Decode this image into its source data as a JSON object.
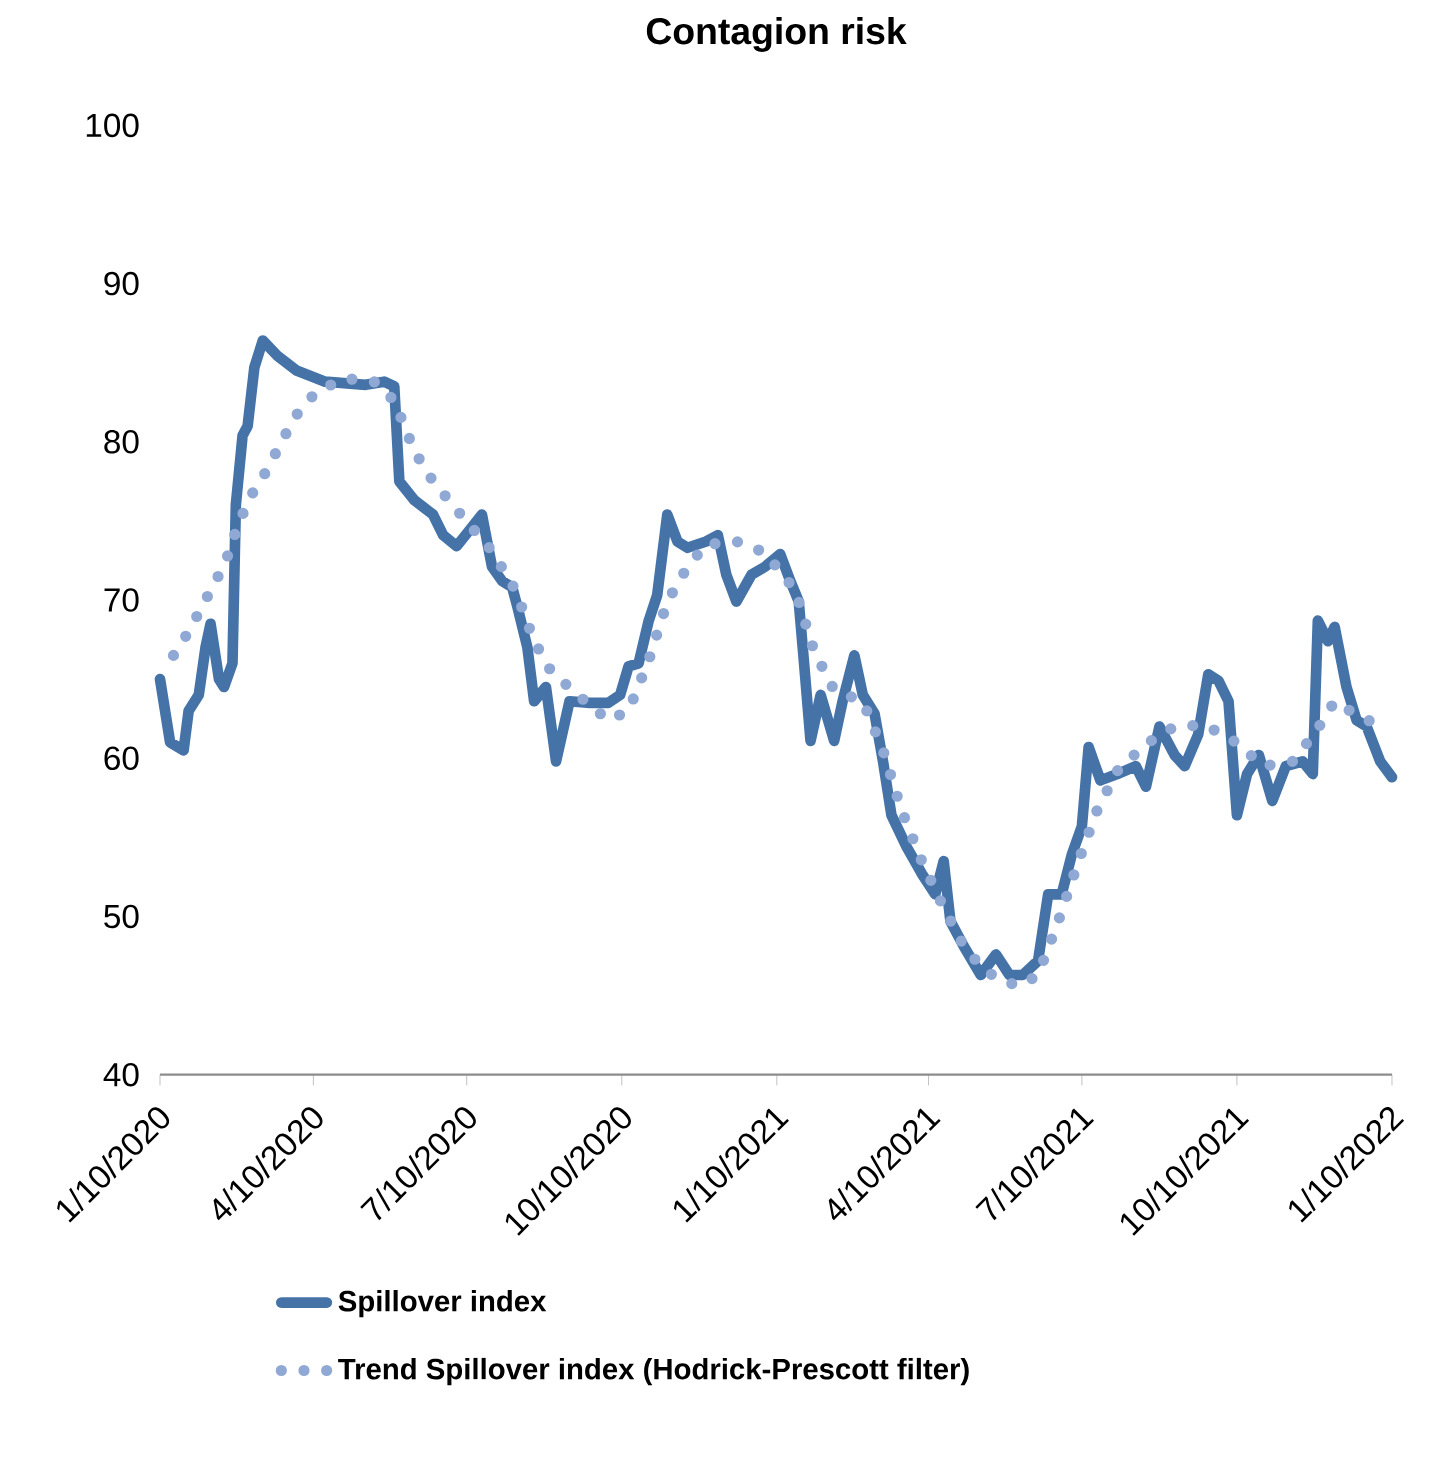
{
  "chart_data": {
    "type": "line",
    "title": "Contagion risk",
    "legend": "bottom",
    "xlim": [
      "2020-01-10",
      "2022-01-10"
    ],
    "xticks": [
      {
        "value": "2020-01-10",
        "label": "1/10/2020"
      },
      {
        "value": "2020-04-10",
        "label": "4/10/2020"
      },
      {
        "value": "2020-07-10",
        "label": "7/10/2020"
      },
      {
        "value": "2020-10-10",
        "label": "10/10/2020"
      },
      {
        "value": "2021-01-10",
        "label": "1/10/2021"
      },
      {
        "value": "2021-04-10",
        "label": "4/10/2021"
      },
      {
        "value": "2021-07-10",
        "label": "7/10/2021"
      },
      {
        "value": "2021-10-10",
        "label": "10/10/2021"
      },
      {
        "value": "2022-01-10",
        "label": "1/10/2022"
      }
    ],
    "ylim": [
      40,
      100
    ],
    "yticks": [
      40,
      50,
      60,
      70,
      80,
      90,
      100
    ],
    "series": [
      {
        "name": "Spillover index",
        "color": "#4573a8",
        "line_style": "solid",
        "x": [
          "2020-01-10",
          "2020-01-16",
          "2020-01-24",
          "2020-01-27",
          "2020-02-02",
          "2020-02-06",
          "2020-02-09",
          "2020-02-14",
          "2020-02-17",
          "2020-02-22",
          "2020-02-24",
          "2020-02-28",
          "2020-03-02",
          "2020-03-06",
          "2020-03-11",
          "2020-03-20",
          "2020-03-31",
          "2020-04-17",
          "2020-05-11",
          "2020-05-22",
          "2020-05-28",
          "2020-05-31",
          "2020-06-09",
          "2020-06-20",
          "2020-06-26",
          "2020-07-04",
          "2020-07-13",
          "2020-07-19",
          "2020-07-25",
          "2020-07-31",
          "2020-08-06",
          "2020-08-09",
          "2020-08-15",
          "2020-08-19",
          "2020-08-26",
          "2020-09-01",
          "2020-09-09",
          "2020-09-21",
          "2020-10-02",
          "2020-10-09",
          "2020-10-14",
          "2020-10-20",
          "2020-10-26",
          "2020-10-31",
          "2020-11-06",
          "2020-11-12",
          "2020-11-18",
          "2020-11-29",
          "2020-12-06",
          "2020-12-11",
          "2020-12-17",
          "2020-12-26",
          "2021-01-03",
          "2021-01-12",
          "2021-01-18",
          "2021-01-23",
          "2021-01-26",
          "2021-01-30",
          "2021-02-05",
          "2021-02-13",
          "2021-02-18",
          "2021-02-25",
          "2021-03-02",
          "2021-03-09",
          "2021-03-14",
          "2021-03-19",
          "2021-03-28",
          "2021-04-06",
          "2021-04-14",
          "2021-04-19",
          "2021-04-23",
          "2021-05-01",
          "2021-05-11",
          "2021-05-20",
          "2021-05-28",
          "2021-06-05",
          "2021-06-14",
          "2021-06-20",
          "2021-06-28",
          "2021-07-04",
          "2021-07-10",
          "2021-07-14",
          "2021-07-21",
          "2021-07-31",
          "2021-08-11",
          "2021-08-17",
          "2021-08-25",
          "2021-09-03",
          "2021-09-09",
          "2021-09-17",
          "2021-09-23",
          "2021-09-29",
          "2021-10-05",
          "2021-10-10",
          "2021-10-16",
          "2021-10-23",
          "2021-10-31",
          "2021-11-08",
          "2021-11-18",
          "2021-11-24",
          "2021-11-27",
          "2021-12-03",
          "2021-12-07",
          "2021-12-14",
          "2021-12-20",
          "2021-12-26",
          "2022-01-03",
          "2022-01-10"
        ],
        "values": [
          65,
          61,
          60.5,
          63,
          64,
          67,
          68.5,
          65,
          64.5,
          66,
          76,
          80.4,
          81,
          84.7,
          86.4,
          85.4,
          84.5,
          83.8,
          83.6,
          83.8,
          83.5,
          77.5,
          76.3,
          75.4,
          74.1,
          73.4,
          74.6,
          75.4,
          72.1,
          71.2,
          70.8,
          69.6,
          67,
          63.6,
          64.5,
          59.8,
          63.6,
          63.5,
          63.5,
          64,
          65.8,
          66,
          68.7,
          70.3,
          75.4,
          73.7,
          73.3,
          73.7,
          74.1,
          71.6,
          69.9,
          71.6,
          72.1,
          72.9,
          71.2,
          69.9,
          66.2,
          61.1,
          64,
          61.1,
          63.6,
          66.5,
          64,
          62.8,
          59.8,
          56.4,
          54.4,
          52.7,
          51.4,
          53.5,
          49.7,
          48.1,
          46.3,
          47.6,
          46.3,
          46.3,
          47.2,
          51.4,
          51.4,
          53.9,
          55.7,
          60.7,
          58.6,
          59,
          59.5,
          58.2,
          62,
          60.2,
          59.5,
          61.5,
          65.3,
          64.9,
          63.6,
          56.4,
          59,
          60.2,
          57.3,
          59.5,
          59.8,
          59,
          68.7,
          67.4,
          68.3,
          64.5,
          62.4,
          62,
          59.8,
          58.8
        ]
      },
      {
        "name": "Trend Spillover index (Hodrick-Prescott filter)",
        "color": "#8fa8d4",
        "line_style": "dotted",
        "x": [
          "2020-01-18",
          "2020-01-27",
          "2020-02-06",
          "2020-02-14",
          "2020-02-20",
          "2020-02-25",
          "2020-03-04",
          "2020-03-14",
          "2020-03-22",
          "2020-03-31",
          "2020-04-12",
          "2020-04-29",
          "2020-05-16",
          "2020-05-28",
          "2020-06-09",
          "2020-06-20",
          "2020-07-08",
          "2020-07-25",
          "2020-08-08",
          "2020-08-19",
          "2020-08-29",
          "2020-09-15",
          "2020-10-02",
          "2020-10-14",
          "2020-10-26",
          "2020-11-06",
          "2020-11-18",
          "2020-11-29",
          "2020-12-17",
          "2021-01-03",
          "2021-01-21",
          "2021-02-01",
          "2021-02-13",
          "2021-03-02",
          "2021-03-14",
          "2021-03-25",
          "2021-04-06",
          "2021-04-17",
          "2021-04-29",
          "2021-05-11",
          "2021-05-22",
          "2021-06-03",
          "2021-06-14",
          "2021-06-26",
          "2021-07-08",
          "2021-07-19",
          "2021-07-31",
          "2021-08-17",
          "2021-09-03",
          "2021-09-21",
          "2021-10-08",
          "2021-10-26",
          "2021-11-12",
          "2021-11-26",
          "2021-12-07",
          "2021-12-22",
          "2022-01-03"
        ],
        "values": [
          66.5,
          68,
          70,
          71.6,
          73,
          74.7,
          76.6,
          78.3,
          80,
          81.7,
          83.2,
          84,
          83.8,
          82.6,
          79.4,
          77.5,
          75.2,
          73.1,
          70.6,
          67.4,
          65.5,
          63.9,
          62.4,
          63,
          66.2,
          69.9,
          72.1,
          73.5,
          73.7,
          73,
          70.6,
          66.8,
          64.3,
          63.6,
          60.5,
          56.7,
          53.5,
          51,
          48.5,
          46.8,
          46,
          45.6,
          46.3,
          49.7,
          53.5,
          56.7,
          59.2,
          60.9,
          62,
          62.1,
          61.1,
          59.5,
          59.8,
          61.7,
          63.6,
          62.6,
          62.1
        ]
      }
    ]
  }
}
